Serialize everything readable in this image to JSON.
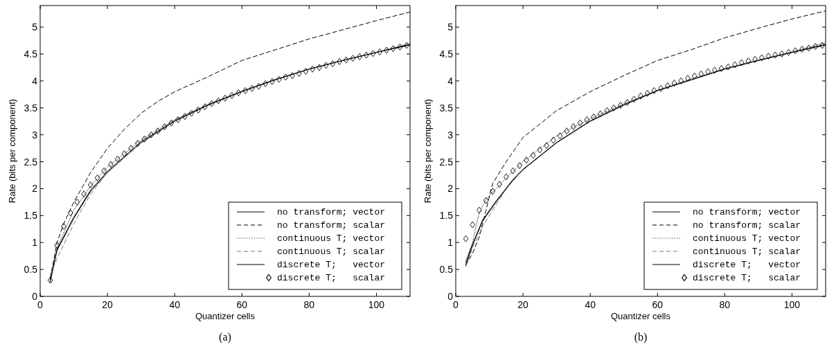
{
  "chart_data": [
    {
      "type": "line",
      "xlabel": "Quantizer cells",
      "ylabel": "Rate (bits per component)",
      "annotations": [
        "(a)"
      ],
      "xlim": [
        0,
        110
      ],
      "ylim": [
        0,
        5.4
      ],
      "xticks": [
        0,
        20,
        40,
        60,
        80,
        100
      ],
      "yticks": [
        0,
        0.5,
        1,
        1.5,
        2,
        2.5,
        3,
        3.5,
        4,
        4.5,
        5
      ],
      "legend": "bottom right",
      "grid": false,
      "series": [
        {
          "name": "no transform; vector",
          "color": "#000000",
          "line_style": "solid",
          "marker": "none",
          "x": [
            3,
            5,
            10,
            15,
            20,
            30,
            40,
            50,
            60,
            70,
            80,
            90,
            100,
            110
          ],
          "values": [
            0.3,
            0.85,
            1.45,
            1.95,
            2.3,
            2.85,
            3.25,
            3.55,
            3.8,
            4.02,
            4.22,
            4.38,
            4.53,
            4.68
          ]
        },
        {
          "name": "no transform; scalar",
          "color": "#000000",
          "line_style": "dashed",
          "marker": "none",
          "x": [
            3,
            5,
            7,
            10,
            15,
            20,
            25,
            30,
            35,
            40,
            50,
            60,
            70,
            80,
            90,
            100,
            110
          ],
          "values": [
            0.33,
            1.0,
            1.35,
            1.75,
            2.3,
            2.75,
            3.1,
            3.4,
            3.62,
            3.8,
            4.08,
            4.38,
            4.58,
            4.78,
            4.95,
            5.12,
            5.28
          ]
        },
        {
          "name": "continuous T; vector",
          "color": "#555555",
          "line_style": "dotted",
          "marker": "none",
          "x": [
            3,
            5,
            10,
            15,
            20,
            30,
            40,
            50,
            60,
            70,
            80,
            90,
            100,
            110
          ],
          "values": [
            0.36,
            0.9,
            1.6,
            2.05,
            2.4,
            2.9,
            3.28,
            3.57,
            3.8,
            4.02,
            4.22,
            4.38,
            4.53,
            4.7
          ]
        },
        {
          "name": "continuous T; scalar",
          "color": "#777777",
          "line_style": "dashed",
          "marker": "none",
          "x": [
            3,
            5,
            10,
            15,
            20,
            30,
            40,
            50,
            60,
            70,
            80,
            90,
            100,
            110
          ],
          "values": [
            0.4,
            0.7,
            1.35,
            1.9,
            2.3,
            2.85,
            3.25,
            3.55,
            3.8,
            4.02,
            4.22,
            4.38,
            4.53,
            4.66
          ]
        },
        {
          "name": "discrete T;   vector",
          "color": "#000000",
          "line_style": "solid",
          "marker": "none",
          "x": [
            3,
            5,
            10,
            15,
            20,
            30,
            40,
            50,
            60,
            70,
            80,
            90,
            100,
            110
          ],
          "values": [
            0.27,
            0.87,
            1.47,
            1.97,
            2.32,
            2.87,
            3.26,
            3.56,
            3.81,
            4.03,
            4.22,
            4.38,
            4.53,
            4.67
          ]
        },
        {
          "name": "discrete T;   scalar",
          "type": "scatter",
          "color": "#000000",
          "marker": "diamond",
          "x": [
            3,
            5,
            7,
            9,
            11,
            13,
            15,
            17,
            19,
            21,
            23,
            25,
            27,
            29,
            31,
            33,
            35,
            37,
            39,
            41,
            43,
            45,
            47,
            49,
            51,
            53,
            55,
            57,
            59,
            61,
            63,
            65,
            67,
            69,
            71,
            73,
            75,
            77,
            79,
            81,
            83,
            85,
            87,
            89,
            91,
            93,
            95,
            97,
            99,
            101,
            103,
            105,
            107,
            109
          ],
          "values": [
            0.3,
            0.95,
            1.3,
            1.55,
            1.75,
            1.9,
            2.07,
            2.2,
            2.33,
            2.45,
            2.55,
            2.65,
            2.75,
            2.84,
            2.92,
            3.0,
            3.07,
            3.15,
            3.22,
            3.28,
            3.34,
            3.4,
            3.46,
            3.52,
            3.58,
            3.63,
            3.68,
            3.73,
            3.78,
            3.82,
            3.86,
            3.9,
            3.95,
            3.99,
            4.03,
            4.07,
            4.1,
            4.14,
            4.18,
            4.22,
            4.25,
            4.29,
            4.32,
            4.36,
            4.39,
            4.42,
            4.45,
            4.48,
            4.51,
            4.54,
            4.57,
            4.6,
            4.63,
            4.66
          ]
        }
      ]
    },
    {
      "type": "line",
      "xlabel": "Quantizer cells",
      "ylabel": "Rate (bits per component)",
      "annotations": [
        "(b)"
      ],
      "xlim": [
        0,
        110
      ],
      "ylim": [
        0,
        5.4
      ],
      "xticks": [
        0,
        20,
        40,
        60,
        80,
        100
      ],
      "yticks": [
        0,
        0.5,
        1,
        1.5,
        2,
        2.5,
        3,
        3.5,
        4,
        4.5,
        5
      ],
      "legend": "bottom right",
      "grid": false,
      "series": [
        {
          "name": "no transform; vector",
          "color": "#000000",
          "line_style": "solid",
          "marker": "none",
          "x": [
            3,
            5,
            8,
            12,
            17,
            20,
            30,
            40,
            50,
            60,
            70,
            80,
            90,
            100,
            110
          ],
          "values": [
            0.58,
            0.95,
            1.4,
            1.75,
            2.15,
            2.35,
            2.85,
            3.25,
            3.55,
            3.82,
            4.02,
            4.22,
            4.38,
            4.53,
            4.68
          ]
        },
        {
          "name": "no transform; scalar",
          "color": "#000000",
          "line_style": "dashed",
          "marker": "none",
          "x": [
            3,
            5,
            7,
            9,
            11,
            15,
            20,
            25,
            30,
            40,
            50,
            60,
            70,
            80,
            90,
            100,
            110
          ],
          "values": [
            0.58,
            0.8,
            1.1,
            1.6,
            2.1,
            2.5,
            2.95,
            3.2,
            3.45,
            3.8,
            4.1,
            4.38,
            4.58,
            4.8,
            4.98,
            5.15,
            5.3
          ]
        },
        {
          "name": "continuous T; vector",
          "color": "#555555",
          "line_style": "dotted",
          "marker": "none",
          "x": [
            3,
            5,
            6,
            7,
            9,
            15,
            20,
            30,
            40,
            50,
            60,
            70,
            80,
            90,
            100,
            110
          ],
          "values": [
            0.66,
            1.0,
            1.3,
            1.55,
            1.8,
            2.2,
            2.5,
            2.98,
            3.3,
            3.58,
            3.83,
            4.04,
            4.23,
            4.39,
            4.54,
            4.71
          ]
        },
        {
          "name": "continuous T; scalar",
          "color": "#777777",
          "line_style": "dashed",
          "marker": "none",
          "x": [
            3,
            5,
            8,
            12,
            15,
            20,
            30,
            40,
            50,
            60,
            70,
            80,
            90,
            100,
            110
          ],
          "values": [
            0.55,
            0.9,
            1.3,
            1.7,
            2.0,
            2.35,
            2.85,
            3.25,
            3.55,
            3.82,
            4.02,
            4.22,
            4.38,
            4.53,
            4.66
          ]
        },
        {
          "name": "discrete T;   vector",
          "color": "#000000",
          "line_style": "solid",
          "marker": "none",
          "x": [
            3,
            5,
            8,
            12,
            17,
            20,
            30,
            40,
            50,
            60,
            70,
            80,
            90,
            100,
            110
          ],
          "values": [
            0.62,
            0.97,
            1.42,
            1.77,
            2.17,
            2.36,
            2.86,
            3.26,
            3.56,
            3.82,
            4.02,
            4.22,
            4.38,
            4.53,
            4.67
          ]
        },
        {
          "name": "discrete T;   scalar",
          "type": "scatter",
          "color": "#000000",
          "marker": "diamond",
          "x": [
            3,
            5,
            7,
            9,
            11,
            13,
            15,
            17,
            19,
            21,
            23,
            25,
            27,
            29,
            31,
            33,
            35,
            37,
            39,
            41,
            43,
            45,
            47,
            49,
            51,
            53,
            55,
            57,
            59,
            61,
            63,
            65,
            67,
            69,
            71,
            73,
            75,
            77,
            79,
            81,
            83,
            85,
            87,
            89,
            91,
            93,
            95,
            97,
            99,
            101,
            103,
            105,
            107,
            109
          ],
          "values": [
            1.07,
            1.33,
            1.6,
            1.78,
            1.95,
            2.08,
            2.22,
            2.33,
            2.43,
            2.53,
            2.62,
            2.72,
            2.8,
            2.9,
            2.98,
            3.07,
            3.15,
            3.22,
            3.28,
            3.33,
            3.39,
            3.45,
            3.5,
            3.55,
            3.6,
            3.66,
            3.72,
            3.77,
            3.82,
            3.86,
            3.91,
            3.96,
            4.0,
            4.05,
            4.09,
            4.13,
            4.17,
            4.2,
            4.23,
            4.26,
            4.3,
            4.34,
            4.37,
            4.4,
            4.43,
            4.46,
            4.48,
            4.5,
            4.53,
            4.56,
            4.59,
            4.61,
            4.64,
            4.66
          ]
        }
      ]
    }
  ]
}
